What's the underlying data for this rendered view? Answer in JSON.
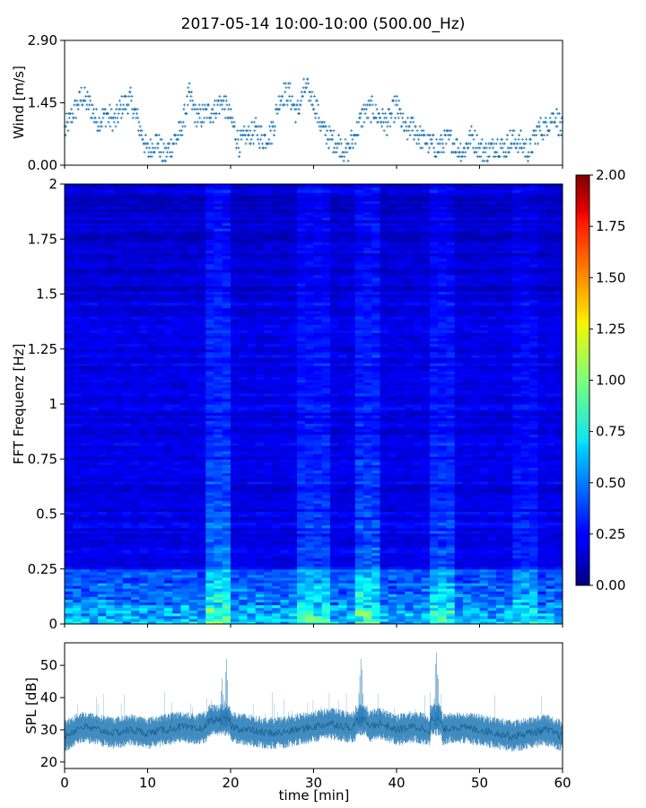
{
  "figure": {
    "title": "2017-05-14 10:00-10:00 (500.00_Hz)"
  },
  "chart_data": [
    {
      "type": "scatter",
      "panel": "wind",
      "ylabel": "Wind [m/s]",
      "xlabel": "",
      "xlim": [
        0,
        60
      ],
      "ylim": [
        0,
        2.9
      ],
      "yticks": [
        "0.00",
        "1.45",
        "2.90"
      ],
      "x_ticks_labeled": false,
      "marker": "+",
      "color": "#1f77b4",
      "grid": false,
      "series": [
        {
          "x": [
            0,
            1,
            2,
            3,
            4,
            5,
            6,
            7,
            8,
            9,
            10,
            11,
            12,
            13,
            14,
            15,
            16,
            17,
            18,
            19,
            20,
            21,
            22,
            23,
            24,
            25,
            26,
            27,
            28,
            29,
            30,
            31,
            32,
            33,
            34,
            35,
            36,
            37,
            38,
            39,
            40,
            41,
            42,
            43,
            44,
            45,
            46,
            47,
            48,
            49,
            50,
            51,
            52,
            53,
            54,
            55,
            56,
            57,
            58,
            59,
            60
          ],
          "y": [
            0.8,
            1.2,
            1.6,
            1.4,
            1.0,
            1.2,
            1.0,
            1.4,
            1.5,
            0.9,
            0.3,
            0.6,
            0.2,
            0.5,
            0.8,
            1.6,
            1.1,
            1.2,
            1.3,
            1.5,
            1.1,
            0.5,
            0.7,
            0.8,
            0.6,
            0.8,
            1.6,
            1.7,
            1.2,
            1.8,
            1.5,
            0.9,
            0.6,
            0.5,
            0.3,
            0.7,
            1.2,
            1.3,
            1.1,
            1.0,
            1.4,
            0.8,
            0.9,
            0.6,
            0.5,
            0.4,
            0.6,
            0.5,
            0.3,
            0.7,
            0.4,
            0.3,
            0.5,
            0.4,
            0.6,
            0.5,
            0.3,
            0.8,
            0.9,
            1.2,
            0.8
          ]
        }
      ]
    },
    {
      "type": "heatmap",
      "panel": "spectrogram",
      "ylabel": "FFT Frequenz [Hz]",
      "xlabel": "",
      "xlim": [
        0,
        60
      ],
      "ylim": [
        0,
        2
      ],
      "yticks": [
        "0",
        "0.25",
        "0.5",
        "0.75",
        "1",
        "1.25",
        "1.5",
        "1.75",
        "2"
      ],
      "x_ticks_labeled": false,
      "colormap": "jet",
      "colorbar": {
        "vmin": 0,
        "vmax": 2,
        "ticks": [
          "0.00",
          "0.25",
          "0.50",
          "0.75",
          "1.00",
          "1.25",
          "1.50",
          "1.75",
          "2.00"
        ]
      },
      "background_level": 0.2,
      "low_frequency_band": {
        "freq_max": 0.25,
        "level": 0.6
      },
      "bright_time_bands": [
        {
          "t_start": 17,
          "t_end": 20,
          "level": 0.55
        },
        {
          "t_start": 28.5,
          "t_end": 32,
          "level": 0.45
        },
        {
          "t_start": 35,
          "t_end": 38,
          "level": 0.5
        },
        {
          "t_start": 44,
          "t_end": 47,
          "level": 0.45
        },
        {
          "t_start": 54,
          "t_end": 57,
          "level": 0.35
        }
      ]
    },
    {
      "type": "line",
      "panel": "spl",
      "ylabel": "SPL [dB]",
      "xlabel": "time [min]",
      "xlim": [
        0,
        60
      ],
      "ylim": [
        18,
        57
      ],
      "yticks": [
        "20",
        "30",
        "40",
        "50"
      ],
      "xticks": [
        "0",
        "10",
        "20",
        "30",
        "40",
        "50",
        "60"
      ],
      "color": "#1f77b4",
      "grid": false,
      "series": [
        {
          "x": [
            0,
            2,
            4,
            6,
            8,
            10,
            12,
            14,
            16,
            17,
            18,
            19,
            19.5,
            20,
            22,
            24,
            26,
            28,
            30,
            32,
            34,
            35,
            35.7,
            36.5,
            38,
            40,
            42,
            44,
            44.8,
            45.5,
            47,
            50,
            52,
            54,
            56,
            58,
            60
          ],
          "y": [
            28,
            31,
            30,
            29,
            30,
            29,
            30,
            31,
            30,
            31,
            35,
            46,
            52,
            31,
            30,
            29,
            29,
            30,
            31,
            32,
            31,
            31,
            52,
            31,
            32,
            30,
            31,
            30,
            54,
            30,
            31,
            30,
            29,
            28,
            29,
            30,
            28
          ]
        }
      ]
    }
  ]
}
